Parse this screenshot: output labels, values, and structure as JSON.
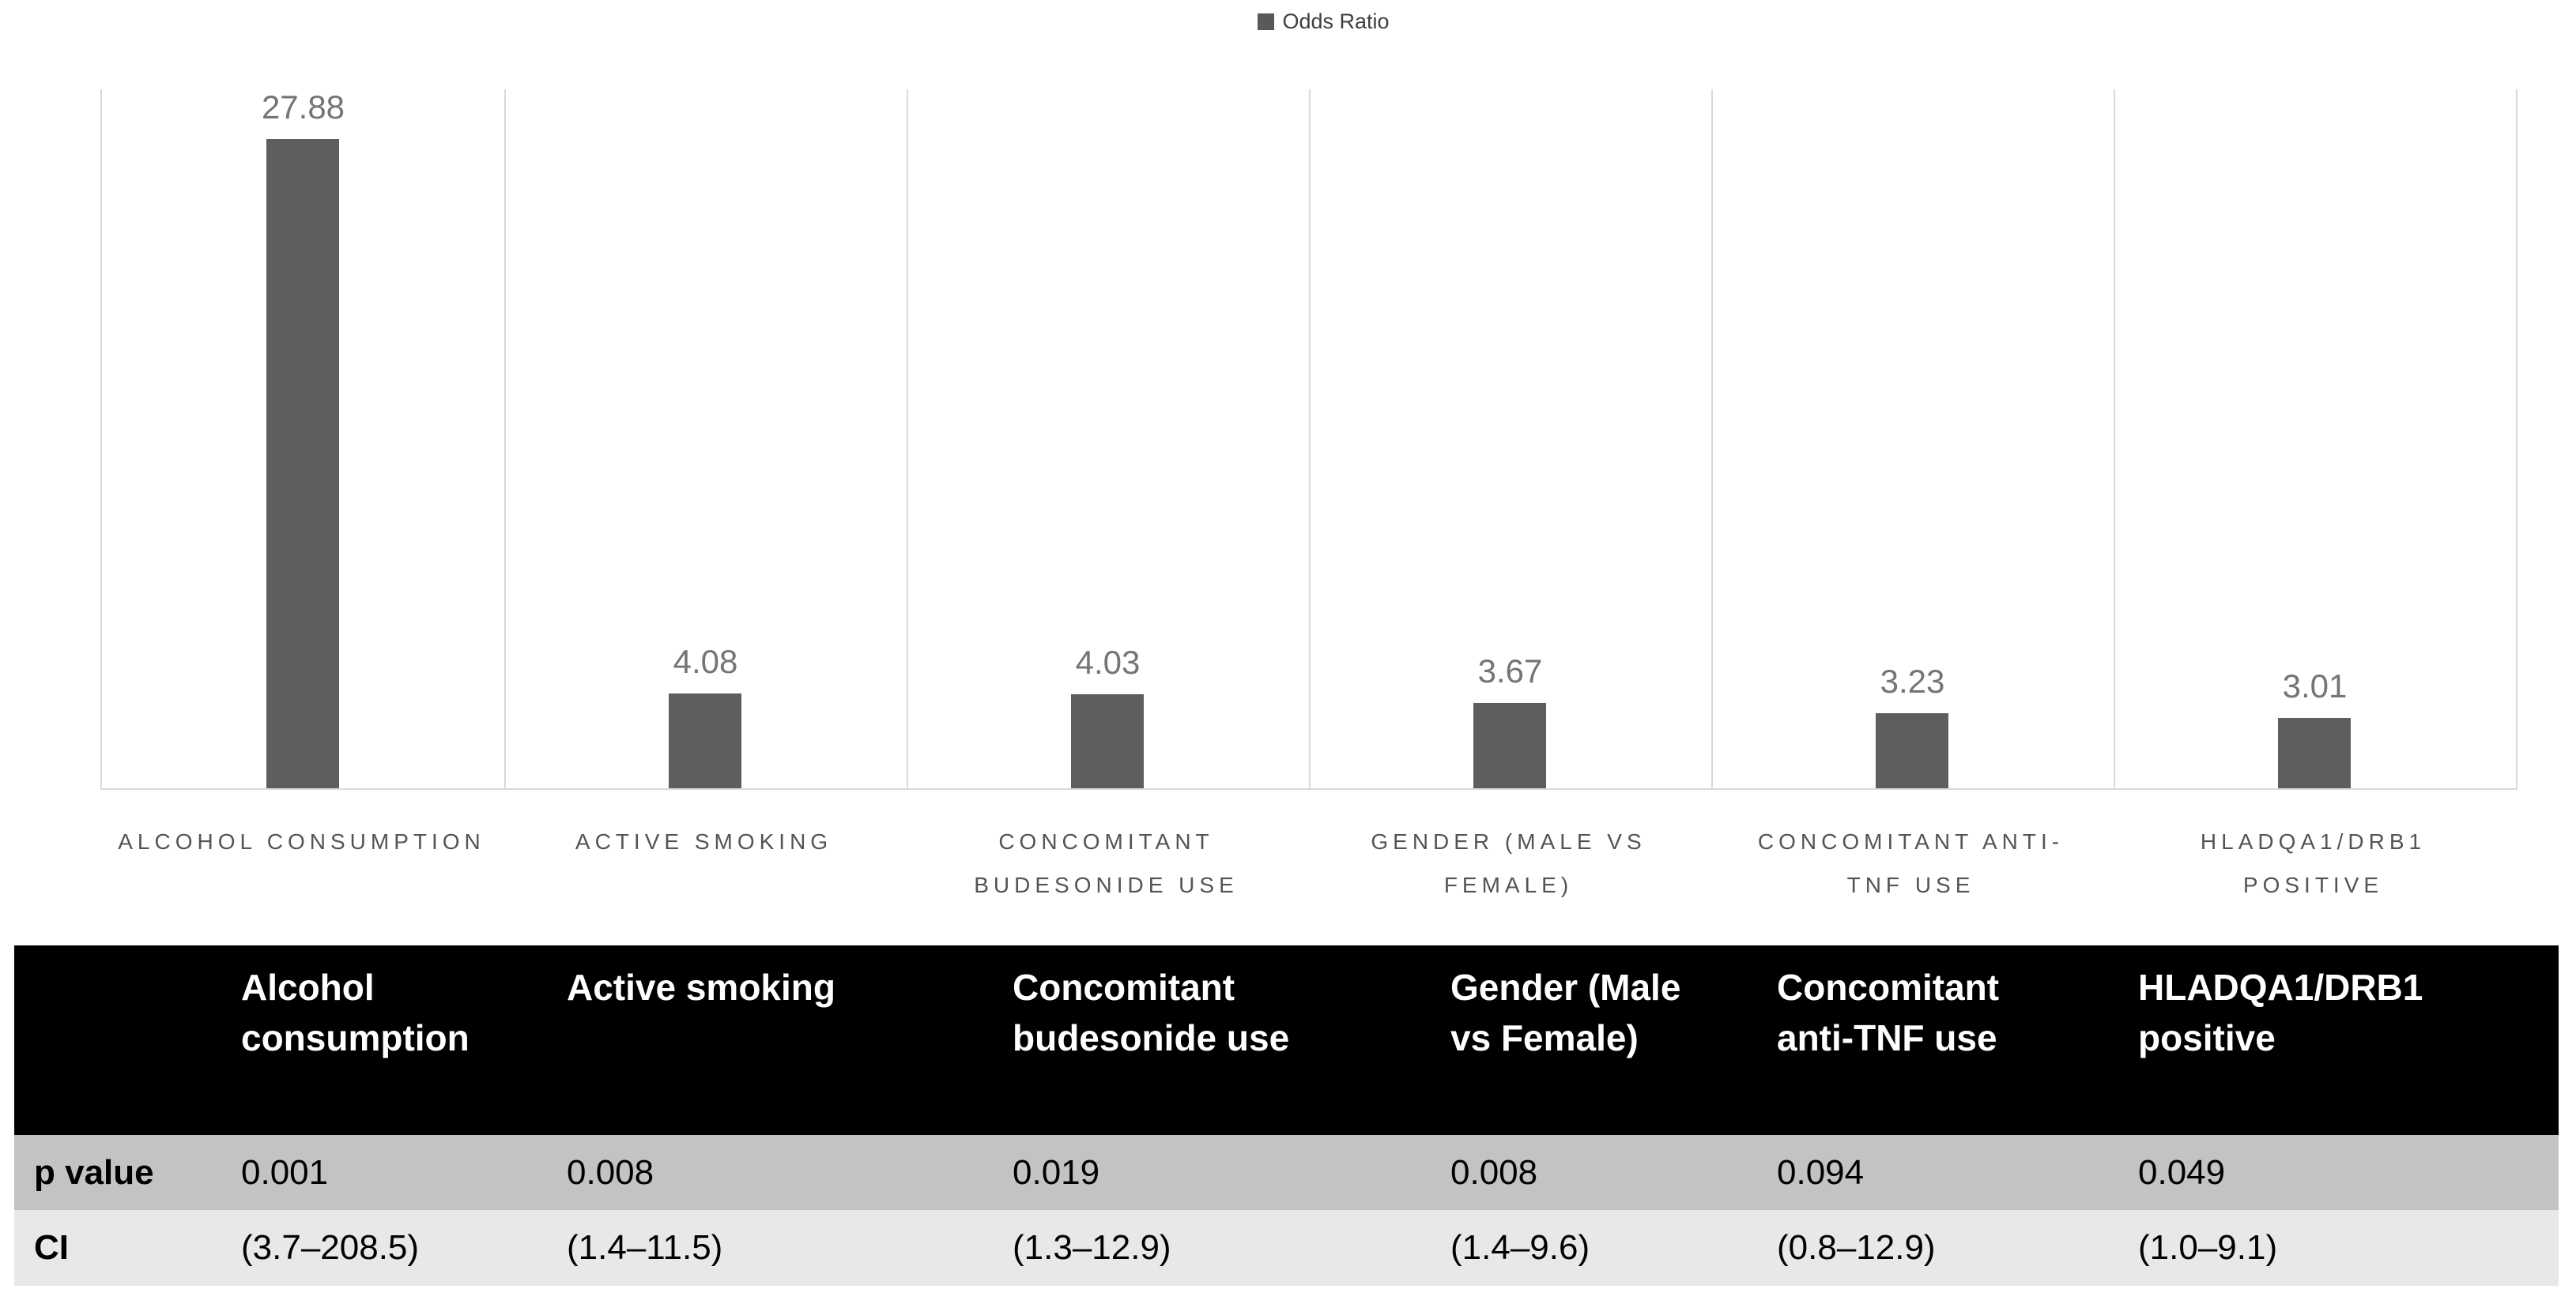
{
  "legend": {
    "label": "Odds Ratio",
    "marker_color": "#595959"
  },
  "chart_data": {
    "type": "bar",
    "title": "",
    "series": [
      {
        "name": "Odds Ratio",
        "values": [
          27.88,
          4.08,
          4.03,
          3.67,
          3.23,
          3.01
        ]
      }
    ],
    "values": [
      27.88,
      4.08,
      4.03,
      3.67,
      3.23,
      3.01
    ],
    "value_labels": [
      "27.88",
      "4.08",
      "4.03",
      "3.67",
      "3.23",
      "3.01"
    ],
    "categories": [
      "Alcohol consumption",
      "Active smoking",
      "Concomitant budesonide use",
      "Gender (Male vs Female)",
      "Concomitant anti-TNF use",
      "HLADQA1/DRB1 positive"
    ],
    "tick_labels": [
      "ALCOHOL CONSUMPTION",
      "ACTIVE SMOKING",
      "CONCOMITANT\nBUDESONIDE USE",
      "GENDER (MALE VS\nFEMALE)",
      "CONCOMITANT ANTI-\nTNF USE",
      "HLADQA1/DRB1\nPOSITIVE"
    ],
    "xlabel": "",
    "ylabel": "",
    "ylim": [
      0,
      30
    ],
    "grid": "vertical panel separators only, light gray",
    "legend_position": "top-center",
    "bar_color": "#5e5e5e",
    "gridline_color": "#d9d9d9"
  },
  "table": {
    "header_bg": "#000000",
    "header_text_color": "#ffffff",
    "row_bgs": [
      "#c3c3c3",
      "#e8e8e8"
    ],
    "columns": [
      "",
      "Alcohol consumption",
      "Active smoking",
      "Concomitant budesonide use",
      "Gender (Male vs Female)",
      "Concomitant anti-TNF use",
      "HLADQA1/DRB1 positive"
    ],
    "columns_display": [
      "",
      "Alcohol\nconsumption",
      "Active smoking",
      "Concomitant\nbudesonide use",
      "Gender (Male\nvs Female)",
      "Concomitant\nanti-TNF use",
      "HLADQA1/DRB1\npositive"
    ],
    "rows": [
      {
        "label": "p value",
        "values": [
          "0.001",
          "0.008",
          "0.019",
          "0.008",
          "0.094",
          "0.049"
        ]
      },
      {
        "label": "CI",
        "values": [
          "(3.7–208.5)",
          "(1.4–11.5)",
          "(1.3–12.9)",
          "(1.4–9.6)",
          "(0.8–12.9)",
          "(1.0–9.1)"
        ]
      }
    ]
  }
}
